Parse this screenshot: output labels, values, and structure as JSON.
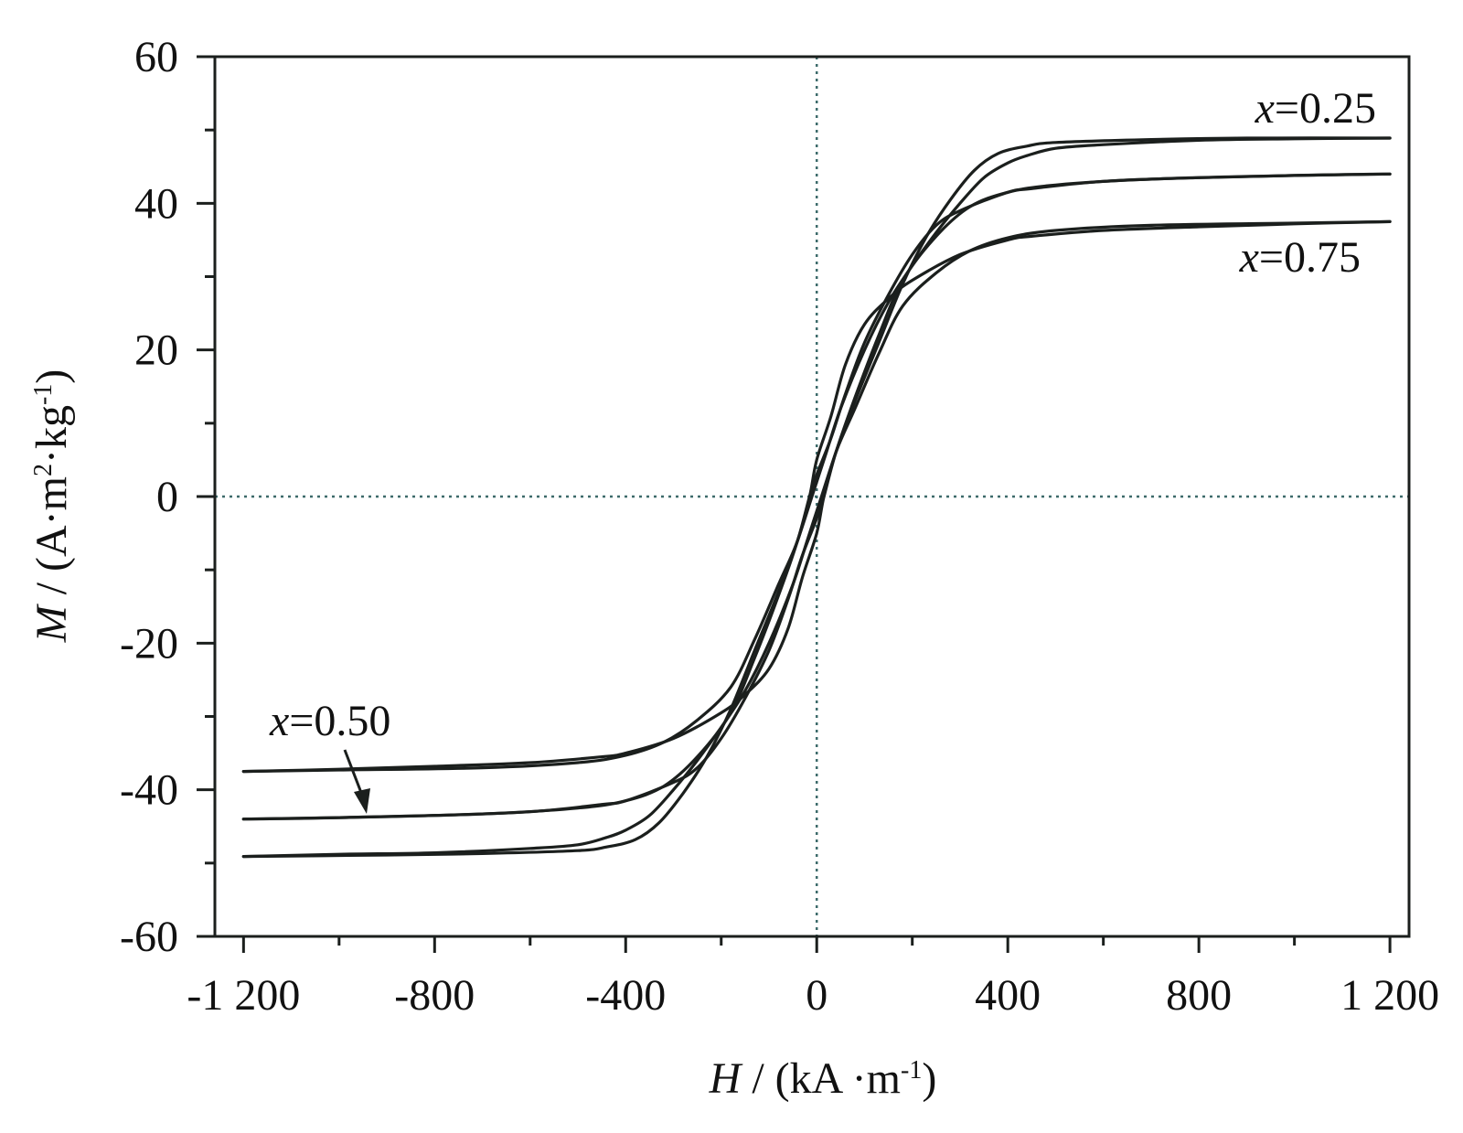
{
  "chart_data": {
    "type": "line",
    "title": "",
    "xlabel": {
      "symbol": "H",
      "rest": " / (kA ·m",
      "sup": "-1",
      "close": ")"
    },
    "ylabel": {
      "symbol": "M",
      "rest": " / (A·m",
      "sup1": "2",
      "mid": "·kg",
      "sup2": "-1",
      "close": ")"
    },
    "xlim": [
      -1260,
      1240
    ],
    "ylim": [
      -60,
      60
    ],
    "xticks": [
      -1200,
      -800,
      -400,
      0,
      400,
      800,
      1200
    ],
    "xtick_labels": [
      "-1 200",
      "-800",
      "-400",
      "0",
      "400",
      "800",
      "1 200"
    ],
    "yticks": [
      -60,
      -40,
      -20,
      0,
      20,
      40,
      60
    ],
    "ytick_labels": [
      "-60",
      "-40",
      "-20",
      "0",
      "20",
      "40",
      "60"
    ],
    "zero_lines": true,
    "grid": false,
    "legend": "none",
    "line_color": "#1b1f1d",
    "series": [
      {
        "name_prefix": "x",
        "name_value": "=0.25",
        "label_position": "top-right",
        "descending": [
          [
            1200,
            48.9
          ],
          [
            1000,
            48.8
          ],
          [
            800,
            48.6
          ],
          [
            600,
            48.0
          ],
          [
            500,
            47.5
          ],
          [
            440,
            46.5
          ],
          [
            400,
            45.5
          ],
          [
            350,
            43.5
          ],
          [
            300,
            40.0
          ],
          [
            250,
            36.0
          ],
          [
            200,
            31.5
          ],
          [
            150,
            26.5
          ],
          [
            100,
            20.0
          ],
          [
            50,
            12.0
          ],
          [
            20,
            6.0
          ],
          [
            0,
            2.0
          ],
          [
            -10,
            0
          ],
          [
            -40,
            -6.0
          ],
          [
            -80,
            -13.0
          ],
          [
            -130,
            -21.0
          ],
          [
            -180,
            -29.0
          ],
          [
            -230,
            -35.5
          ],
          [
            -280,
            -40.5
          ],
          [
            -330,
            -44.5
          ],
          [
            -380,
            -46.8
          ],
          [
            -440,
            -47.8
          ],
          [
            -500,
            -48.3
          ],
          [
            -700,
            -48.7
          ],
          [
            -900,
            -48.9
          ],
          [
            -1200,
            -49.1
          ]
        ],
        "ascending": [
          [
            -1200,
            -49.1
          ],
          [
            -1000,
            -48.8
          ],
          [
            -800,
            -48.6
          ],
          [
            -600,
            -48.0
          ],
          [
            -500,
            -47.5
          ],
          [
            -440,
            -46.5
          ],
          [
            -400,
            -45.5
          ],
          [
            -350,
            -43.5
          ],
          [
            -300,
            -40.0
          ],
          [
            -250,
            -36.0
          ],
          [
            -200,
            -31.5
          ],
          [
            -150,
            -26.5
          ],
          [
            -100,
            -20.0
          ],
          [
            -50,
            -12.0
          ],
          [
            -20,
            -6.0
          ],
          [
            0,
            -2.0
          ],
          [
            10,
            0
          ],
          [
            40,
            6.0
          ],
          [
            80,
            13.0
          ],
          [
            130,
            21.0
          ],
          [
            180,
            29.0
          ],
          [
            230,
            35.5
          ],
          [
            280,
            40.5
          ],
          [
            330,
            44.5
          ],
          [
            380,
            46.8
          ],
          [
            440,
            47.8
          ],
          [
            500,
            48.3
          ],
          [
            700,
            48.7
          ],
          [
            900,
            48.9
          ],
          [
            1200,
            48.9
          ]
        ]
      },
      {
        "name_prefix": "x",
        "name_value": "=0.50",
        "label_position": "bottom-left, arrow",
        "descending": [
          [
            1200,
            44.0
          ],
          [
            1000,
            43.8
          ],
          [
            800,
            43.5
          ],
          [
            600,
            43.0
          ],
          [
            450,
            42.0
          ],
          [
            400,
            41.5
          ],
          [
            300,
            39.0
          ],
          [
            250,
            37.0
          ],
          [
            200,
            33.0
          ],
          [
            150,
            27.5
          ],
          [
            100,
            21.0
          ],
          [
            60,
            14.0
          ],
          [
            30,
            8.0
          ],
          [
            0,
            3.0
          ],
          [
            -15,
            0
          ],
          [
            -40,
            -6.0
          ],
          [
            -80,
            -13.5
          ],
          [
            -130,
            -22.0
          ],
          [
            -180,
            -29.5
          ],
          [
            -250,
            -35.5
          ],
          [
            -320,
            -39.5
          ],
          [
            -400,
            -41.5
          ],
          [
            -500,
            -42.5
          ],
          [
            -700,
            -43.3
          ],
          [
            -1000,
            -43.8
          ],
          [
            -1200,
            -44.0
          ]
        ],
        "ascending": [
          [
            -1200,
            -44.0
          ],
          [
            -1000,
            -43.8
          ],
          [
            -800,
            -43.5
          ],
          [
            -600,
            -43.0
          ],
          [
            -450,
            -42.0
          ],
          [
            -400,
            -41.5
          ],
          [
            -300,
            -39.0
          ],
          [
            -250,
            -37.0
          ],
          [
            -200,
            -33.0
          ],
          [
            -150,
            -27.5
          ],
          [
            -100,
            -21.0
          ],
          [
            -60,
            -14.0
          ],
          [
            -30,
            -8.0
          ],
          [
            0,
            -3.0
          ],
          [
            15,
            0
          ],
          [
            40,
            6.0
          ],
          [
            80,
            13.5
          ],
          [
            130,
            22.0
          ],
          [
            180,
            29.5
          ],
          [
            250,
            35.5
          ],
          [
            320,
            39.5
          ],
          [
            400,
            41.5
          ],
          [
            500,
            42.5
          ],
          [
            700,
            43.3
          ],
          [
            1000,
            43.8
          ],
          [
            1200,
            44.0
          ]
        ]
      },
      {
        "name_prefix": "x",
        "name_value": "=0.75",
        "label_position": "right, below curves",
        "descending": [
          [
            1200,
            37.5
          ],
          [
            1000,
            37.2
          ],
          [
            800,
            36.8
          ],
          [
            600,
            36.3
          ],
          [
            450,
            35.5
          ],
          [
            400,
            35.0
          ],
          [
            300,
            33.0
          ],
          [
            200,
            29.5
          ],
          [
            150,
            27.0
          ],
          [
            100,
            23.5
          ],
          [
            60,
            18.0
          ],
          [
            30,
            11.0
          ],
          [
            0,
            5.0
          ],
          [
            -15,
            0
          ],
          [
            -40,
            -6.0
          ],
          [
            -80,
            -12.0
          ],
          [
            -130,
            -19.5
          ],
          [
            -180,
            -26.0
          ],
          [
            -250,
            -30.5
          ],
          [
            -320,
            -33.5
          ],
          [
            -400,
            -35.3
          ],
          [
            -500,
            -36.3
          ],
          [
            -700,
            -37.0
          ],
          [
            -1000,
            -37.3
          ],
          [
            -1200,
            -37.5
          ]
        ],
        "ascending": [
          [
            -1200,
            -37.5
          ],
          [
            -1000,
            -37.2
          ],
          [
            -800,
            -36.8
          ],
          [
            -600,
            -36.3
          ],
          [
            -450,
            -35.5
          ],
          [
            -400,
            -35.0
          ],
          [
            -300,
            -33.0
          ],
          [
            -200,
            -29.5
          ],
          [
            -150,
            -27.0
          ],
          [
            -100,
            -23.5
          ],
          [
            -60,
            -18.0
          ],
          [
            -30,
            -11.0
          ],
          [
            0,
            -5.0
          ],
          [
            15,
            0
          ],
          [
            40,
            6.0
          ],
          [
            80,
            12.0
          ],
          [
            130,
            19.5
          ],
          [
            180,
            26.0
          ],
          [
            250,
            30.5
          ],
          [
            320,
            33.5
          ],
          [
            400,
            35.3
          ],
          [
            500,
            36.3
          ],
          [
            700,
            37.0
          ],
          [
            1000,
            37.3
          ],
          [
            1200,
            37.5
          ]
        ]
      }
    ]
  }
}
